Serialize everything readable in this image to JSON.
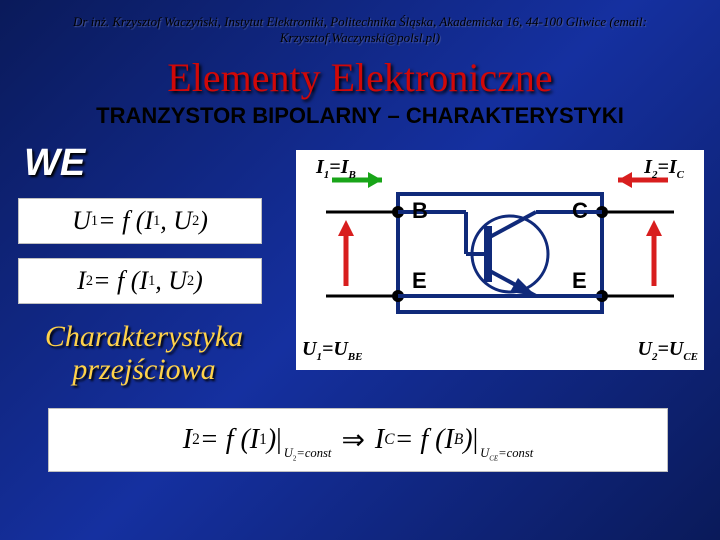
{
  "header": "Dr inż. Krzysztof Waczyński, Instytut Elektroniki, Politechnika Śląska, Akademicka 16, 44-100 Gliwice  (email: Krzysztof.Waczynski@polsl.pl)",
  "title": "Elementy Elektroniczne",
  "subtitle": "TRANZYSTOR BIPOLARNY – CHARAKTERYSTYKI",
  "we": "WE",
  "eq1_html": "U<span class='sub'>1</span> = f (I<span class='sub'>1</span> , U<span class='sub'>2</span>)",
  "eq2_html": "I<span class='sub'>2</span> = f (I<span class='sub'>1</span> , U<span class='sub'>2</span>)",
  "charak": "Charakterystyka przejściowa",
  "diagram": {
    "I1": "I<span class='sub-i'>1</span>=I<span class='sub-i'>B</span>",
    "I2": "I<span class='sub-i'>2</span>=I<span class='sub-i'>C</span>",
    "B": "B",
    "C": "C",
    "E": "E",
    "U1": "U<span class='sub-i'>1</span>=U<span class='sub-i'>BE</span>",
    "U2": "U<span class='sub-i'>2</span>=U<span class='sub-i'>CE</span>"
  },
  "long_eq_html": "I<span class='sub'>2</span> = f (I<span class='sub'>1</span>)<span class='bigop'>|</span><span class='constraint'>U<span class='sub'>2</span>=const</span><span class='arrow-sym'>⇒</span>I<span class='sub-i'>C</span> = f (I<span class='sub-i'>B</span>)<span class='bigop'>|</span><span class='constraint'>U<span class='sub-i'>CE</span>=const</span>",
  "colors": {
    "green": "#19a519",
    "red": "#d81e1e",
    "navy": "#102a7a",
    "black": "#000"
  }
}
